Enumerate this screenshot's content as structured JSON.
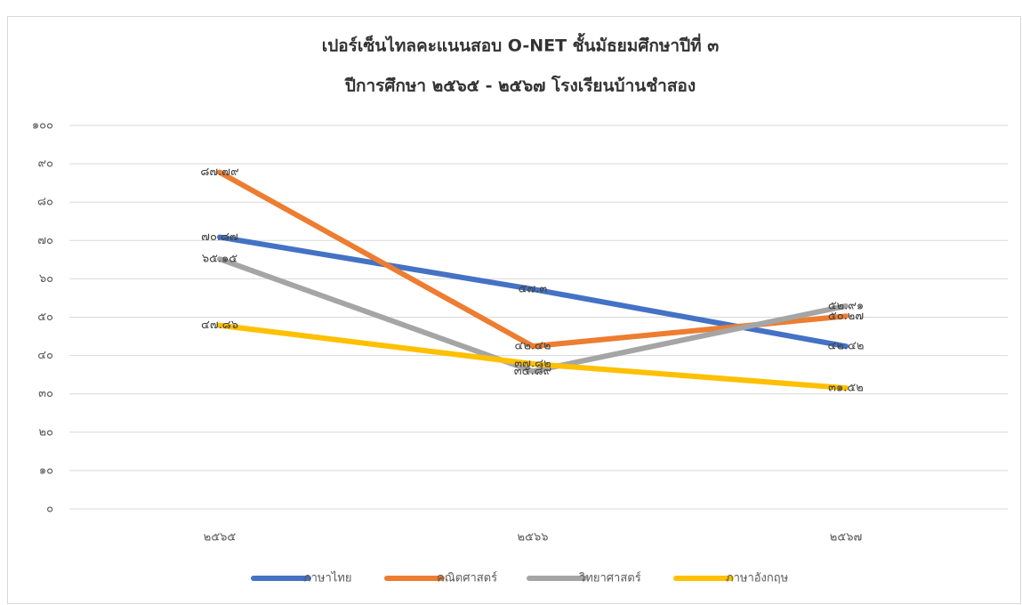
{
  "chart_data": {
    "type": "line",
    "title": "เปอร์เซ็นไทลคะแนนสอบ O-NET ชั้นมัธยมศึกษาปีที่ ๓",
    "subtitle": "ปีการศึกษา ๒๕๖๕ - ๒๕๖๗ โรงเรียนบ้านชำสอง",
    "categories": [
      "๒๕๖๕",
      "๒๕๖๖",
      "๒๕๖๗"
    ],
    "series": [
      {
        "name": "ภาษาไทย",
        "color": "#4472c4",
        "values": [
          70.87,
          57.3,
          42.42
        ],
        "value_labels": [
          "๗๐.๘๗",
          "๕๗.๓",
          "๔๒.๔๒"
        ]
      },
      {
        "name": "คณิตศาสตร์",
        "color": "#ed7d31",
        "values": [
          87.79,
          42.42,
          50.27
        ],
        "value_labels": [
          "๘๗.๗๙",
          "๔๒.๔๒",
          "๕๐.๒๗"
        ]
      },
      {
        "name": "วิทยาศาสตร์",
        "color": "#a5a5a5",
        "values": [
          65.15,
          35.89,
          52.91
        ],
        "value_labels": [
          "๖๕.๑๕",
          "๓๕.๘๙",
          "๕๒.๙๑"
        ]
      },
      {
        "name": "ภาษาอังกฤษ",
        "color": "#ffc000",
        "values": [
          47.86,
          37.82,
          31.52
        ],
        "value_labels": [
          "๔๗.๘๖",
          "๓๗.๘๒",
          "๓๑.๕๒"
        ]
      }
    ],
    "ylim": [
      0,
      100
    ],
    "yticks": [
      {
        "value": 0,
        "label": "๐"
      },
      {
        "value": 10,
        "label": "๑๐"
      },
      {
        "value": 20,
        "label": "๒๐"
      },
      {
        "value": 30,
        "label": "๓๐"
      },
      {
        "value": 40,
        "label": "๔๐"
      },
      {
        "value": 50,
        "label": "๕๐"
      },
      {
        "value": 60,
        "label": "๖๐"
      },
      {
        "value": 70,
        "label": "๗๐"
      },
      {
        "value": 80,
        "label": "๘๐"
      },
      {
        "value": 90,
        "label": "๙๐"
      },
      {
        "value": 100,
        "label": "๑๐๐"
      }
    ],
    "grid": true,
    "legend": "bottom"
  }
}
